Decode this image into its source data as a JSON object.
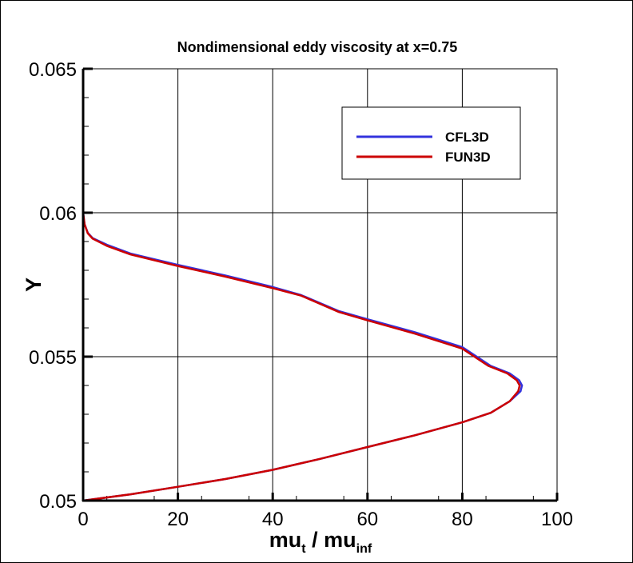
{
  "chart_data": {
    "type": "line",
    "title": "Nondimensional eddy viscosity at x=0.75",
    "xlabel": {
      "main": "mu",
      "sub1": "t",
      "mid": " / mu",
      "sub2": "inf"
    },
    "ylabel": "Y",
    "xlim": [
      0,
      100
    ],
    "ylim": [
      0.05,
      0.065
    ],
    "xticks": [
      "0",
      "20",
      "40",
      "60",
      "80",
      "100"
    ],
    "yticks": [
      "0.05",
      "0.055",
      "0.06",
      "0.065"
    ],
    "grid": true,
    "legend_position": "top-right",
    "series": [
      {
        "name": "CFL3D",
        "color": "#3333dd",
        "points": [
          [
            0,
            0.05
          ],
          [
            10,
            0.05022
          ],
          [
            20,
            0.05048
          ],
          [
            30,
            0.05075
          ],
          [
            40,
            0.05107
          ],
          [
            50,
            0.05145
          ],
          [
            60,
            0.05186
          ],
          [
            70,
            0.05227
          ],
          [
            80,
            0.05272
          ],
          [
            86,
            0.05305
          ],
          [
            90,
            0.05345
          ],
          [
            92.3,
            0.0538
          ],
          [
            92.6,
            0.054
          ],
          [
            92,
            0.05418
          ],
          [
            90,
            0.05442
          ],
          [
            86,
            0.05468
          ],
          [
            80,
            0.05533
          ],
          [
            70,
            0.05585
          ],
          [
            60,
            0.0563
          ],
          [
            54,
            0.05658
          ],
          [
            46,
            0.05714
          ],
          [
            40,
            0.05742
          ],
          [
            30,
            0.05782
          ],
          [
            20,
            0.05819
          ],
          [
            10,
            0.05858
          ],
          [
            5,
            0.05889
          ],
          [
            2,
            0.05912
          ],
          [
            1,
            0.0593
          ],
          [
            0.3,
            0.0596
          ],
          [
            0,
            0.06
          ]
        ]
      },
      {
        "name": "FUN3D",
        "color": "#cc0000",
        "points": [
          [
            0,
            0.05
          ],
          [
            10,
            0.05022
          ],
          [
            20,
            0.05048
          ],
          [
            30,
            0.05075
          ],
          [
            40,
            0.05107
          ],
          [
            50,
            0.05145
          ],
          [
            60,
            0.05186
          ],
          [
            70,
            0.05227
          ],
          [
            80,
            0.05272
          ],
          [
            86,
            0.05305
          ],
          [
            90,
            0.05345
          ],
          [
            91.8,
            0.0538
          ],
          [
            92.1,
            0.054
          ],
          [
            91.5,
            0.05418
          ],
          [
            89.5,
            0.05442
          ],
          [
            85.5,
            0.05468
          ],
          [
            80,
            0.05528
          ],
          [
            70,
            0.0558
          ],
          [
            60,
            0.05626
          ],
          [
            54,
            0.05655
          ],
          [
            46,
            0.05712
          ],
          [
            40,
            0.05738
          ],
          [
            30,
            0.05778
          ],
          [
            20,
            0.05815
          ],
          [
            10,
            0.05855
          ],
          [
            5,
            0.05885
          ],
          [
            2,
            0.0591
          ],
          [
            1,
            0.05928
          ],
          [
            0.3,
            0.0596
          ],
          [
            0,
            0.06
          ]
        ]
      }
    ]
  }
}
